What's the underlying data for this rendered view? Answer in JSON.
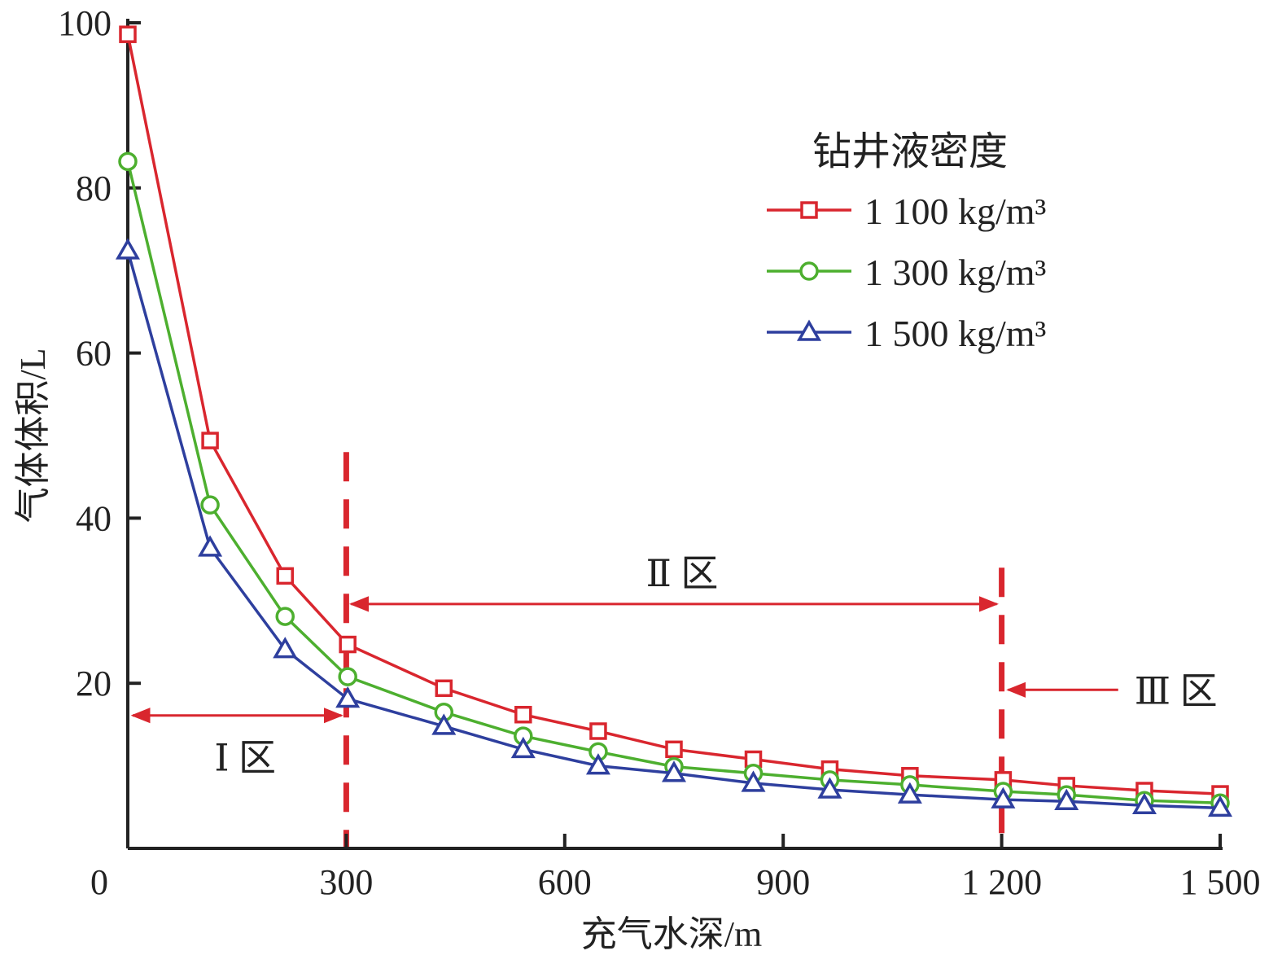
{
  "chart_data": {
    "type": "line",
    "title": "",
    "xlabel": "充气水深/m",
    "ylabel": "气体体积/L",
    "xlim": [
      0,
      1500
    ],
    "ylim": [
      0,
      100
    ],
    "x_ticks": [
      0,
      300,
      600,
      900,
      1200,
      1500
    ],
    "x_tick_labels": [
      "0",
      "300",
      "600",
      "900",
      "1 200",
      "1 500"
    ],
    "y_ticks": [
      20,
      40,
      60,
      80,
      100
    ],
    "y_tick_labels": [
      "20",
      "40",
      "60",
      "80",
      "100"
    ],
    "grid": false,
    "legend": {
      "title": "钻井液密度",
      "placement": "top-right"
    },
    "x": [
      0,
      113,
      216,
      302,
      434,
      543,
      646,
      750,
      859,
      964,
      1074,
      1202,
      1289,
      1396,
      1500
    ],
    "series": [
      {
        "name": "1 100 kg/m³",
        "color": "#d9262e",
        "marker": "square",
        "values": [
          98.6,
          49.4,
          33.0,
          24.7,
          19.4,
          16.2,
          14.2,
          12.0,
          10.8,
          9.6,
          8.8,
          8.3,
          7.6,
          7.0,
          6.6
        ]
      },
      {
        "name": "1 300 kg/m³",
        "color": "#4daf2f",
        "marker": "circle",
        "values": [
          83.2,
          41.6,
          28.1,
          20.8,
          16.5,
          13.6,
          11.7,
          9.9,
          9.1,
          8.3,
          7.7,
          6.9,
          6.5,
          5.8,
          5.5
        ]
      },
      {
        "name": "1 500 kg/m³",
        "color": "#2e3f9e",
        "marker": "triangle",
        "values": [
          72.4,
          36.4,
          24.1,
          18.1,
          14.8,
          12.0,
          10.0,
          9.1,
          7.9,
          7.1,
          6.5,
          5.9,
          5.7,
          5.2,
          4.9
        ]
      }
    ],
    "annotations": {
      "divider_color": "#d9262e",
      "dividers": [
        {
          "x": 300,
          "y_top": 48
        },
        {
          "x": 1200,
          "y_top": 34
        }
      ],
      "zones": [
        {
          "label": "Ⅰ 区",
          "from": 0,
          "to": 300,
          "y": 16.1
        },
        {
          "label": "Ⅱ 区",
          "from": 300,
          "to": 1200,
          "y": 29.6
        },
        {
          "label": "Ⅲ 区",
          "from": 1360,
          "to": 1200,
          "y": 19.2
        }
      ]
    }
  }
}
